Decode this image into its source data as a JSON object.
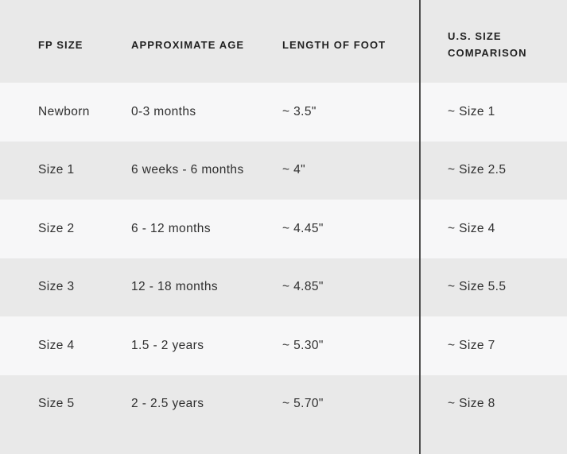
{
  "table": {
    "columns": [
      "FP SIZE",
      "APPROXIMATE AGE",
      "LENGTH OF FOOT",
      "U.S. SIZE COMPARISON"
    ],
    "rows": [
      {
        "fp_size": "Newborn",
        "age": "0-3 months",
        "length": "~ 3.5\"",
        "us_size": "~ Size 1"
      },
      {
        "fp_size": "Size 1",
        "age": "6 weeks - 6 months",
        "length": "~ 4\"",
        "us_size": "~ Size 2.5"
      },
      {
        "fp_size": "Size 2",
        "age": "6 - 12 months",
        "length": "~ 4.45\"",
        "us_size": "~ Size 4"
      },
      {
        "fp_size": "Size 3",
        "age": "12 - 18 months",
        "length": "~ 4.85\"",
        "us_size": "~ Size 5.5"
      },
      {
        "fp_size": "Size 4",
        "age": "1.5 - 2 years",
        "length": "~ 5.30\"",
        "us_size": "~ Size 7"
      },
      {
        "fp_size": "Size 5",
        "age": "2 - 2.5 years",
        "length": "~ 5.70\"",
        "us_size": "~ Size 8"
      }
    ]
  },
  "colors": {
    "header_bg": "#e9e9e9",
    "row_alt_bg": "#e9e9e9",
    "row_bg": "#f7f7f8",
    "divider": "#4d4d4d",
    "text": "#2f2f2f"
  },
  "chart_data": {
    "type": "table",
    "title": "",
    "columns": [
      "FP SIZE",
      "APPROXIMATE AGE",
      "LENGTH OF FOOT",
      "U.S. SIZE COMPARISON"
    ],
    "rows": [
      [
        "Newborn",
        "0-3 months",
        "~ 3.5\"",
        "~ Size 1"
      ],
      [
        "Size 1",
        "6 weeks - 6 months",
        "~ 4\"",
        "~ Size 2.5"
      ],
      [
        "Size 2",
        "6 - 12 months",
        "~ 4.45\"",
        "~ Size 4"
      ],
      [
        "Size 3",
        "12 - 18 months",
        "~ 4.85\"",
        "~ Size 5.5"
      ],
      [
        "Size 4",
        "1.5 - 2 years",
        "~ 5.30\"",
        "~ Size 7"
      ],
      [
        "Size 5",
        "2 - 2.5 years",
        "~ 5.70\"",
        "~ Size 8"
      ]
    ],
    "layout_hints": {
      "striped_rows": true,
      "header_band": true,
      "vertical_divider_before_last_column": true
    }
  }
}
